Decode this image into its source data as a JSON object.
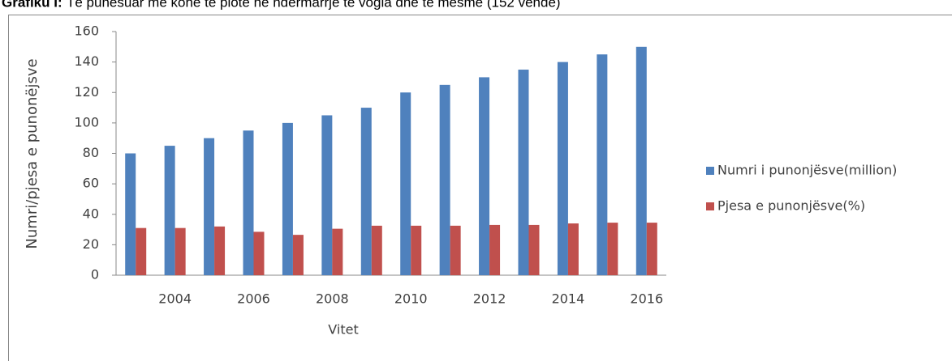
{
  "chart_data": {
    "type": "bar",
    "title_label": "Grafiku I:",
    "title": "Të punësuar me kohë të plotë në ndërmarrje të vogla dhe të mesme (152 vende)",
    "x_label": "Vitet",
    "y_label": "Numri/pjesa e punonëjsve",
    "categories": [
      null,
      2004,
      null,
      2006,
      null,
      2008,
      null,
      2010,
      null,
      2012,
      null,
      2014,
      null,
      2016
    ],
    "series": [
      {
        "name": "Numri i punonjësve(million)",
        "color": "#4f81bd",
        "values": [
          80,
          85,
          90,
          95,
          100,
          105,
          110,
          120,
          125,
          130,
          135,
          140,
          145,
          150
        ]
      },
      {
        "name": "Pjesa e punonjësve(%)",
        "color": "#c0504d",
        "values": [
          31,
          31,
          32,
          28.5,
          26.5,
          30.5,
          32.5,
          32.5,
          32.5,
          33,
          33,
          34,
          34.5,
          34.5
        ]
      }
    ],
    "ylim": [
      0,
      160
    ],
    "yticks": [
      0,
      20,
      40,
      60,
      80,
      100,
      120,
      140,
      160
    ],
    "grid": false,
    "legend": "right"
  }
}
